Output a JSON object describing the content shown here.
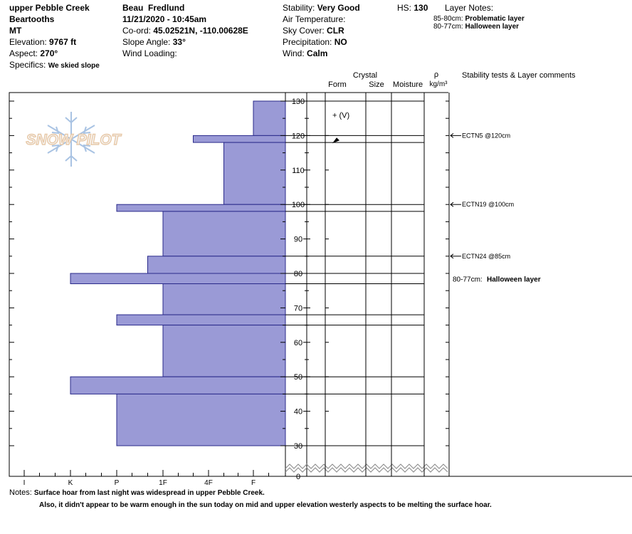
{
  "header": {
    "location": "upper Pebble Creek",
    "range": "Beartooths",
    "state": "MT",
    "elevation_label": "Elevation:",
    "elevation_value": "9767 ft",
    "aspect_label": "Aspect:",
    "aspect_value": "270°",
    "specifics_label": "Specifics:",
    "specifics_value": "We skied slope",
    "observer": "Beau  Fredlund",
    "datetime": "11/21/2020 - 10:45am",
    "coord_label": "Co-ord:",
    "coord_value": "45.02521N, -110.00628E",
    "slope_label": "Slope Angle:",
    "slope_value": "33°",
    "wind_loading_label": "Wind Loading:",
    "stability_label": "Stability:",
    "stability_value": "Very Good",
    "hs_label": "HS:",
    "hs_value": "130",
    "air_temp_label": "Air Temperature:",
    "sky_label": "Sky Cover:",
    "sky_value": "CLR",
    "precip_label": "Precipitation:",
    "precip_value": "NO",
    "wind_label": "Wind:",
    "wind_value": "Calm",
    "layer_notes_label": "Layer Notes:",
    "layer_notes": [
      {
        "range": "85-80cm:",
        "text": "Problematic layer"
      },
      {
        "range": "80-77cm:",
        "text": "Halloween layer"
      }
    ]
  },
  "columns": {
    "crystal": "Crystal",
    "form": "Form",
    "size": "Size",
    "moisture": "Moisture",
    "rho": "ρ",
    "density_unit": "kg/m³",
    "comments": "Stability tests & Layer comments"
  },
  "logo_text": "SNOW PILOT",
  "chart_data": {
    "type": "bar",
    "orientation": "horizontal",
    "y_axis": {
      "range": [
        0,
        130
      ],
      "ticks": [
        0,
        30,
        40,
        50,
        60,
        70,
        80,
        90,
        100,
        110,
        120,
        130
      ],
      "break": [
        0,
        30
      ]
    },
    "x_axis": {
      "categories": [
        "I",
        "K",
        "P",
        "1F",
        "4F",
        "F"
      ]
    },
    "hardness_layers": [
      {
        "top": 130,
        "bottom": 120,
        "hardness": "F"
      },
      {
        "top": 120,
        "bottom": 118,
        "hardness": "4F+"
      },
      {
        "top": 118,
        "bottom": 100,
        "hardness": "4F-"
      },
      {
        "top": 100,
        "bottom": 98,
        "hardness": "P"
      },
      {
        "top": 98,
        "bottom": 85,
        "hardness": "1F"
      },
      {
        "top": 85,
        "bottom": 80,
        "hardness": "1F+"
      },
      {
        "top": 80,
        "bottom": 77,
        "hardness": "K"
      },
      {
        "top": 77,
        "bottom": 68,
        "hardness": "1F"
      },
      {
        "top": 68,
        "bottom": 65,
        "hardness": "P"
      },
      {
        "top": 65,
        "bottom": 50,
        "hardness": "1F"
      },
      {
        "top": 50,
        "bottom": 45,
        "hardness": "K"
      },
      {
        "top": 45,
        "bottom": 30,
        "hardness": "P"
      }
    ],
    "layer_boundaries": [
      130,
      120,
      118,
      100,
      98,
      85,
      80,
      77,
      68,
      65,
      50,
      45,
      30
    ],
    "crystal_forms": [
      {
        "height": 126,
        "symbol": "+ (V)"
      },
      {
        "height": 119,
        "symbol": "surface hoar"
      }
    ],
    "tests": [
      {
        "height": 120,
        "label": "ECTN5 @120cm"
      },
      {
        "height": 100,
        "label": "ECTN19 @100cm"
      },
      {
        "height": 85,
        "label": "ECTN24 @85cm"
      }
    ],
    "layer_comment": {
      "height": 78.5,
      "range": "80-77cm:",
      "text": "Halloween layer"
    }
  },
  "notes_label": "Notes:",
  "notes": [
    "Surface hoar from last night was widespread in upper Pebble Creek.",
    "Also, it didn't appear to be warm enough in the sun today on mid and upper elevation westerly aspects to be melting the surface hoar."
  ],
  "colors": {
    "bar_fill": "#9a9ad6",
    "bar_stroke": "#2a2a8a",
    "logo_blue": "#a9c3e3",
    "logo_orange": "#e8c9a8"
  }
}
